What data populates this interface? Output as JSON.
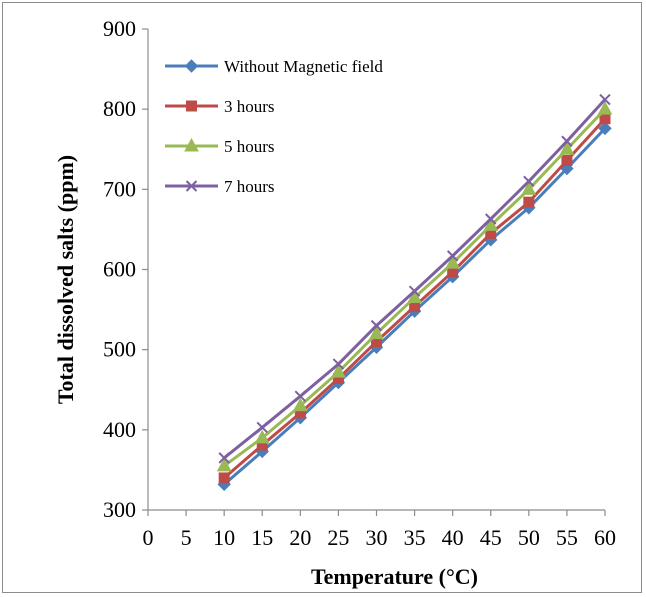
{
  "chart_data": {
    "type": "line",
    "title": "",
    "xlabel": "Temperature (°C)",
    "ylabel": "Total dissolved salts (ppm)",
    "xlim": [
      0,
      60
    ],
    "ylim": [
      300,
      900
    ],
    "x_ticks": [
      0,
      5,
      10,
      15,
      20,
      25,
      30,
      35,
      40,
      45,
      50,
      55,
      60
    ],
    "y_ticks": [
      300,
      400,
      500,
      600,
      700,
      800,
      900
    ],
    "grid": false,
    "legend_position": "top-left",
    "x": [
      10,
      15,
      20,
      25,
      30,
      35,
      40,
      45,
      50,
      55,
      60
    ],
    "series": [
      {
        "name": "Without Magnetic field",
        "color": "#4a7ebb",
        "marker": "diamond",
        "values": [
          332,
          373,
          415,
          459,
          503,
          548,
          591,
          637,
          677,
          726,
          776
        ]
      },
      {
        "name": "3 hours",
        "color": "#be4b48",
        "marker": "square",
        "values": [
          340,
          381,
          421,
          464,
          510,
          554,
          597,
          645,
          684,
          736,
          788
        ]
      },
      {
        "name": "5 hours",
        "color": "#98b954",
        "marker": "triangle",
        "values": [
          355,
          390,
          430,
          472,
          520,
          565,
          608,
          655,
          700,
          750,
          800
        ]
      },
      {
        "name": "7 hours",
        "color": "#7d60a0",
        "marker": "x",
        "values": [
          365,
          403,
          442,
          482,
          530,
          573,
          617,
          663,
          710,
          760,
          812
        ]
      }
    ]
  }
}
